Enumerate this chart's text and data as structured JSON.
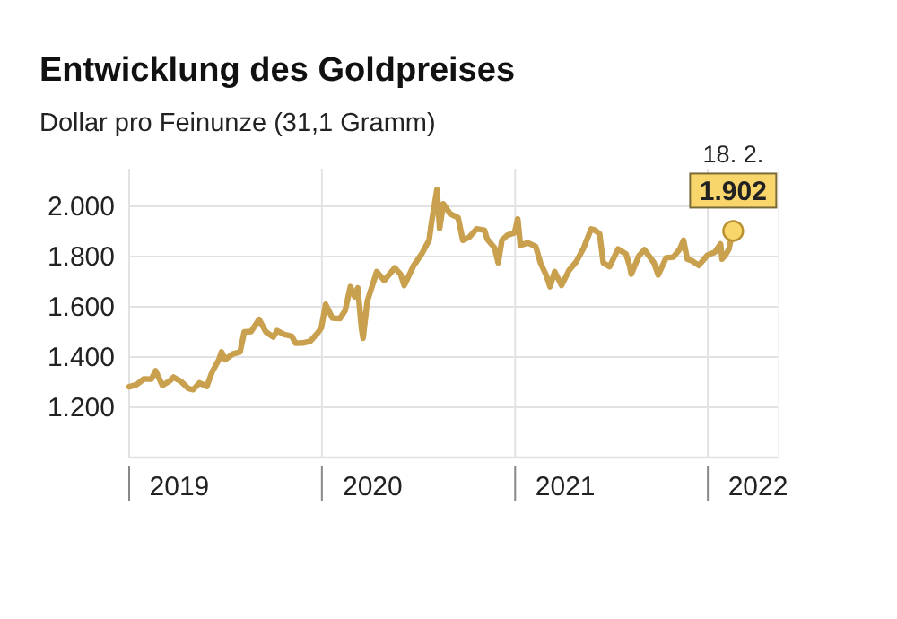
{
  "chart_data": {
    "type": "line",
    "title": "Entwicklung des Goldpreises",
    "subtitle": "Dollar pro Feinunze (31,1 Gramm)",
    "xlim": [
      "2019-01-01",
      "2022-05-15"
    ],
    "xticks": [
      {
        "value": "2019-01-01",
        "label": null
      },
      {
        "value": "2019-04-06",
        "label": "2019"
      },
      {
        "value": "2020-01-01",
        "label": null
      },
      {
        "value": "2020-04-06",
        "label": "2020"
      },
      {
        "value": "2021-01-01",
        "label": null
      },
      {
        "value": "2021-04-06",
        "label": "2021"
      },
      {
        "value": "2022-01-01",
        "label": null
      },
      {
        "value": "2022-04-06",
        "label": "2022"
      }
    ],
    "ylim": [
      1000,
      2150
    ],
    "yticks": [
      {
        "value": 1200,
        "label": "1.200"
      },
      {
        "value": 1400,
        "label": "1.400"
      },
      {
        "value": 1600,
        "label": "1.600"
      },
      {
        "value": 1800,
        "label": "1.800"
      },
      {
        "value": 2000,
        "label": "2.000"
      }
    ],
    "grid": true,
    "annotations": [
      {
        "text": "18. 2.",
        "x": "2022-02-18",
        "y": 1902
      }
    ],
    "series": [
      {
        "color": "#c9a04e",
        "x": [
          "2019-01-01",
          "2019-01-15",
          "2019-01-29",
          "2019-02-12",
          "2019-02-20",
          "2019-03-05",
          "2019-03-19",
          "2019-03-26",
          "2019-04-09",
          "2019-04-23",
          "2019-05-02",
          "2019-05-14",
          "2019-05-28",
          "2019-06-07",
          "2019-06-20",
          "2019-06-25",
          "2019-07-02",
          "2019-07-16",
          "2019-07-30",
          "2019-08-07",
          "2019-08-20",
          "2019-09-04",
          "2019-09-17",
          "2019-10-01",
          "2019-10-08",
          "2019-10-22",
          "2019-11-05",
          "2019-11-12",
          "2019-11-26",
          "2019-12-10",
          "2019-12-24",
          "2019-12-31",
          "2020-01-08",
          "2020-01-21",
          "2020-02-04",
          "2020-02-14",
          "2020-02-24",
          "2020-03-03",
          "2020-03-09",
          "2020-03-16",
          "2020-03-19",
          "2020-03-27",
          "2020-04-14",
          "2020-04-28",
          "2020-05-18",
          "2020-05-29",
          "2020-06-05",
          "2020-06-23",
          "2020-07-08",
          "2020-07-22",
          "2020-07-27",
          "2020-08-06",
          "2020-08-11",
          "2020-08-18",
          "2020-08-31",
          "2020-09-15",
          "2020-09-24",
          "2020-10-06",
          "2020-10-20",
          "2020-11-04",
          "2020-11-09",
          "2020-11-23",
          "2020-11-30",
          "2020-12-07",
          "2020-12-17",
          "2020-12-31",
          "2021-01-06",
          "2021-01-11",
          "2021-01-25",
          "2021-02-09",
          "2021-02-18",
          "2021-03-01",
          "2021-03-08",
          "2021-03-17",
          "2021-03-30",
          "2021-04-13",
          "2021-04-27",
          "2021-05-11",
          "2021-05-25",
          "2021-06-01",
          "2021-06-10",
          "2021-06-17",
          "2021-06-29",
          "2021-07-15",
          "2021-07-30",
          "2021-08-06",
          "2021-08-09",
          "2021-08-24",
          "2021-09-03",
          "2021-09-21",
          "2021-09-29",
          "2021-10-14",
          "2021-10-28",
          "2021-11-09",
          "2021-11-16",
          "2021-11-23",
          "2021-12-03",
          "2021-12-15",
          "2021-12-31",
          "2022-01-05",
          "2022-01-14",
          "2022-01-25",
          "2022-01-28",
          "2022-02-04",
          "2022-02-10",
          "2022-02-14",
          "2022-02-18"
        ],
        "values": [
          1282,
          1290,
          1313,
          1312,
          1345,
          1287,
          1305,
          1320,
          1303,
          1275,
          1270,
          1297,
          1283,
          1340,
          1390,
          1420,
          1390,
          1412,
          1420,
          1500,
          1502,
          1550,
          1500,
          1480,
          1505,
          1490,
          1483,
          1455,
          1456,
          1463,
          1496,
          1517,
          1610,
          1555,
          1553,
          1585,
          1680,
          1640,
          1675,
          1515,
          1475,
          1622,
          1740,
          1705,
          1755,
          1730,
          1685,
          1765,
          1810,
          1865,
          1940,
          2067,
          1912,
          2010,
          1970,
          1955,
          1865,
          1877,
          1910,
          1905,
          1870,
          1835,
          1775,
          1865,
          1885,
          1895,
          1950,
          1845,
          1855,
          1840,
          1775,
          1725,
          1680,
          1740,
          1685,
          1745,
          1780,
          1835,
          1910,
          1905,
          1890,
          1775,
          1760,
          1830,
          1810,
          1762,
          1730,
          1805,
          1827,
          1775,
          1727,
          1795,
          1798,
          1830,
          1865,
          1790,
          1782,
          1765,
          1805,
          1810,
          1817,
          1850,
          1790,
          1808,
          1830,
          1870,
          1902
        ]
      },
      {
        "type": "scatter",
        "color": "#f9d66b",
        "x": [
          "2022-02-18"
        ],
        "values": [
          1902
        ],
        "value_labels": [
          "1.902"
        ]
      }
    ]
  }
}
